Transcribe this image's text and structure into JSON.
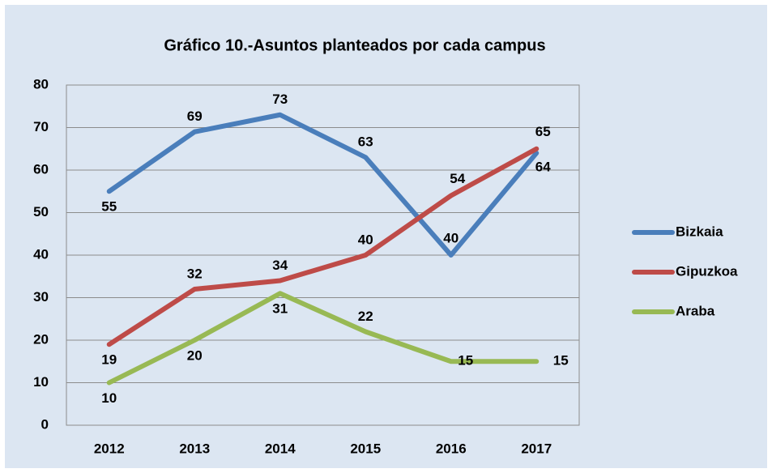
{
  "chart_data": {
    "type": "line",
    "title": "Gráfico 10.-Asuntos planteados por cada campus",
    "categories": [
      "2012",
      "2013",
      "2014",
      "2015",
      "2016",
      "2017"
    ],
    "series": [
      {
        "name": "Bizkaia",
        "color": "#4a7ebb",
        "values": [
          55,
          69,
          73,
          63,
          40,
          64
        ]
      },
      {
        "name": "Gipuzkoa",
        "color": "#be4b48",
        "values": [
          19,
          32,
          34,
          40,
          54,
          65
        ]
      },
      {
        "name": "Araba",
        "color": "#98b954",
        "values": [
          10,
          20,
          31,
          22,
          15,
          15
        ]
      }
    ],
    "ylim": [
      0,
      80
    ],
    "yticks": [
      0,
      10,
      20,
      30,
      40,
      50,
      60,
      70,
      80
    ],
    "grid": true,
    "legend": "right"
  }
}
